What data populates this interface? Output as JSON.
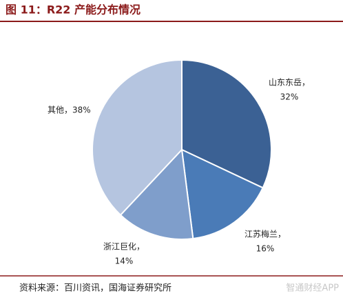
{
  "chart_data": {
    "type": "pie",
    "title": "图 11：R22 产能分布情况",
    "categories": [
      "山东东岳，",
      "江苏梅兰，",
      "浙江巨化，",
      "其他，"
    ],
    "values": [
      32,
      16,
      14,
      38
    ],
    "value_labels": [
      "32%",
      "16%",
      "14%",
      "38%"
    ],
    "colors": [
      "#3b6194",
      "#4a7bb7",
      "#7f9ecb",
      "#b5c5e0"
    ],
    "source": "资料来源：百川资讯，国海证券研究所",
    "watermark": "智通财经APP"
  }
}
